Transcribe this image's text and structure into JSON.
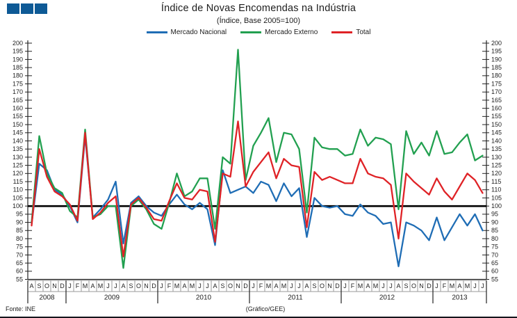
{
  "header": {
    "logo_color": "#0E5A96",
    "title": "Índice de Novas Encomendas na Indústria",
    "subtitle": "(Índice, Base 2005=100)"
  },
  "legend": [
    {
      "label": "Mercado Nacional",
      "color": "#1F6DB5"
    },
    {
      "label": "Mercado Externo",
      "color": "#22A050"
    },
    {
      "label": "Total",
      "color": "#DF2226"
    }
  ],
  "footer": {
    "source": "Fonte: INE",
    "credit": "(Gráfico/GEE)"
  },
  "chart_data": {
    "type": "line",
    "title": "Índice de Novas Encomendas na Indústria",
    "subtitle": "(Índice, Base 2005=100)",
    "ylim": [
      55,
      200
    ],
    "ytick_step": 5,
    "baseline": 100,
    "grid": false,
    "legend_position": "top",
    "axis_color": "#222222",
    "cell_border_color": "#9a9a9a",
    "months": [
      "A",
      "S",
      "O",
      "N",
      "D",
      "J",
      "F",
      "M",
      "A",
      "M",
      "J",
      "J",
      "A",
      "S",
      "O",
      "N",
      "D",
      "J",
      "F",
      "M",
      "A",
      "M",
      "J",
      "J",
      "A",
      "S",
      "O",
      "N",
      "D",
      "J",
      "F",
      "M",
      "A",
      "M",
      "J",
      "J",
      "A",
      "S",
      "O",
      "N",
      "D",
      "J",
      "F",
      "M",
      "A",
      "M",
      "J",
      "J",
      "A",
      "S",
      "O",
      "N",
      "D",
      "J",
      "F",
      "M",
      "A",
      "M",
      "J",
      "J"
    ],
    "years": [
      {
        "label": "2008",
        "months": 5
      },
      {
        "label": "2009",
        "months": 12
      },
      {
        "label": "2010",
        "months": 12
      },
      {
        "label": "2011",
        "months": 12
      },
      {
        "label": "2012",
        "months": 12
      },
      {
        "label": "2013",
        "months": 7
      }
    ],
    "series": [
      {
        "name": "Mercado Nacional",
        "color": "#1F6DB5",
        "values": [
          89,
          126,
          122,
          110,
          107,
          100,
          90,
          143,
          93,
          98,
          104,
          115,
          77,
          102,
          106,
          100,
          96,
          94,
          101,
          107,
          101,
          98,
          102,
          98,
          76,
          122,
          108,
          110,
          112,
          108,
          115,
          113,
          103,
          114,
          106,
          111,
          81,
          105,
          100,
          99,
          100,
          95,
          94,
          101,
          96,
          94,
          89,
          90,
          63,
          90,
          88,
          85,
          79,
          93,
          79,
          87,
          95,
          88,
          95,
          85
        ]
      },
      {
        "name": "Mercado Externo",
        "color": "#22A050",
        "values": [
          90,
          143,
          120,
          111,
          108,
          97,
          93,
          147,
          93,
          95,
          100,
          100,
          62,
          100,
          104,
          98,
          89,
          86,
          102,
          120,
          106,
          109,
          117,
          117,
          86,
          130,
          126,
          196,
          116,
          137,
          145,
          154,
          127,
          145,
          144,
          135,
          96,
          142,
          136,
          135,
          135,
          131,
          132,
          147,
          137,
          142,
          141,
          138,
          98,
          146,
          132,
          139,
          131,
          146,
          132,
          133,
          139,
          144,
          128,
          131
        ]
      },
      {
        "name": "Total",
        "color": "#DF2226",
        "values": [
          88,
          135,
          118,
          109,
          106,
          101,
          91,
          145,
          92,
          96,
          102,
          106,
          69,
          101,
          105,
          99,
          92,
          91,
          103,
          114,
          105,
          104,
          110,
          109,
          78,
          120,
          118,
          152,
          112,
          121,
          127,
          133,
          117,
          129,
          125,
          124,
          87,
          121,
          116,
          118,
          116,
          114,
          114,
          129,
          120,
          118,
          117,
          113,
          80,
          120,
          115,
          111,
          107,
          117,
          109,
          104,
          112,
          120,
          116,
          108
        ]
      }
    ]
  }
}
